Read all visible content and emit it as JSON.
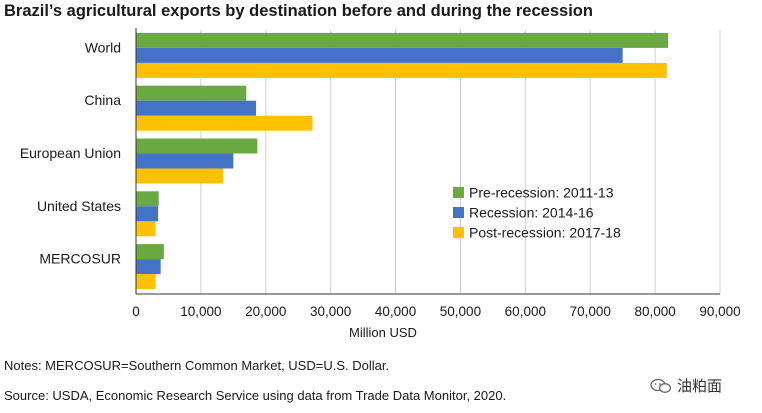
{
  "title": "Brazil’s agricultural exports by destination before and during the recession",
  "notes": "Notes: MERCOSUR=Southern Common Market, USD=U.S. Dollar.",
  "source": "Source: USDA, Economic Research Service using data from Trade Data Monitor, 2020.",
  "watermark": "油粕面",
  "chart_data": {
    "type": "bar",
    "orientation": "horizontal",
    "categories": [
      "World",
      "China",
      "European Union",
      "United States",
      "MERCOSUR"
    ],
    "series": [
      {
        "name": "Pre-recession: 2011-13",
        "color": "#6aa842",
        "values": [
          82000,
          17000,
          18700,
          3500,
          4300
        ]
      },
      {
        "name": "Recession: 2014-16",
        "color": "#4472c4",
        "values": [
          75000,
          18500,
          15000,
          3400,
          3800
        ]
      },
      {
        "name": "Post-recession: 2017-18",
        "color": "#ffc000",
        "values": [
          81800,
          27200,
          13400,
          3000,
          3000
        ]
      }
    ],
    "xlabel": "Million USD",
    "xlim": [
      0,
      90000
    ],
    "xticks": [
      0,
      10000,
      20000,
      30000,
      40000,
      50000,
      60000,
      70000,
      80000,
      90000
    ],
    "xtick_labels": [
      "0",
      "10,000",
      "20,000",
      "30,000",
      "40,000",
      "50,000",
      "60,000",
      "70,000",
      "80,000",
      "90,000"
    ],
    "grid": "vertical",
    "legend_position": "center-right"
  }
}
